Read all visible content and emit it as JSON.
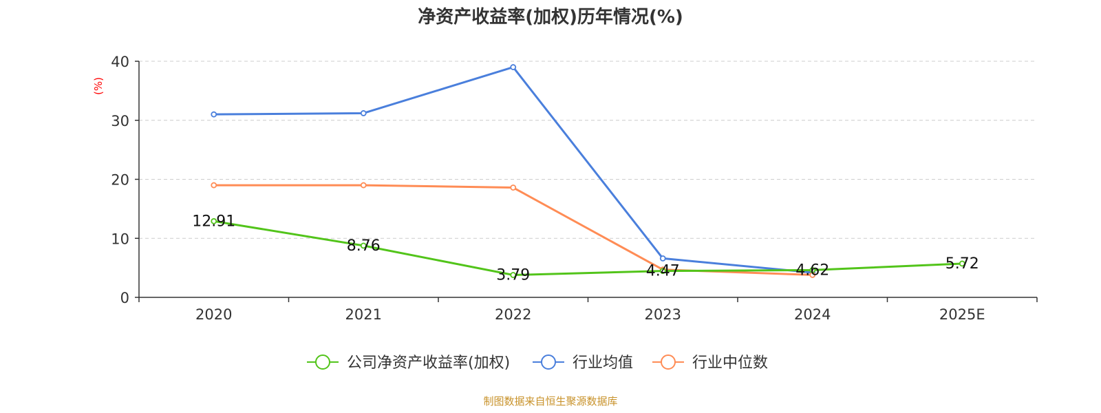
{
  "chart_data": {
    "type": "line",
    "title": "净资产收益率(加权)历年情况(%)",
    "ylabel": "(%)",
    "xlabel": "",
    "categories": [
      "2020",
      "2021",
      "2022",
      "2023",
      "2024",
      "2025E"
    ],
    "ylim": [
      0,
      40
    ],
    "yticks": [
      0,
      10,
      20,
      30,
      40
    ],
    "grid": true,
    "legend_position": "bottom",
    "series": [
      {
        "name": "公司净资产收益率(加权)",
        "color": "#52c41a",
        "values": [
          12.91,
          8.76,
          3.79,
          4.47,
          4.62,
          5.72
        ],
        "labels": [
          "12.91",
          "8.76",
          "3.79",
          "4.47",
          "4.62",
          "5.72"
        ]
      },
      {
        "name": "行业均值",
        "color": "#4a7fdc",
        "values": [
          31.0,
          31.2,
          39.0,
          6.6,
          4.2,
          null
        ]
      },
      {
        "name": "行业中位数",
        "color": "#ff8c55",
        "values": [
          19.0,
          19.0,
          18.6,
          4.7,
          3.8,
          null
        ]
      }
    ]
  },
  "source_text": "制图数据来自恒生聚源数据库",
  "colors": {
    "axis": "#333333",
    "grid": "#cccccc",
    "ylabel": "#ff0000",
    "source": "#c8922a"
  }
}
